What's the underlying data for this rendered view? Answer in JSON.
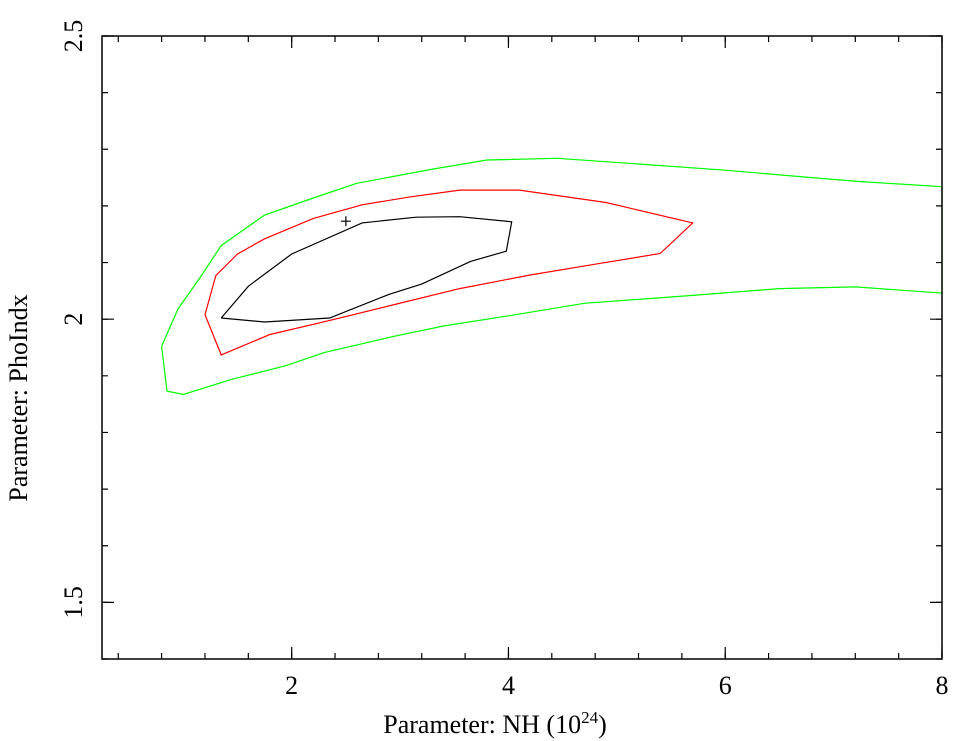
{
  "chart_data": {
    "type": "line",
    "title": "",
    "xlabel": "Parameter: NH (10",
    "xlabel_sup": "24",
    "xlabel_suffix": ")",
    "ylabel": "Parameter: PhoIndx",
    "xlim": [
      0.25,
      8.0
    ],
    "ylim": [
      1.4,
      2.5
    ],
    "x_ticks": [
      2,
      4,
      6,
      8
    ],
    "x_tick_labels": [
      "2",
      "4",
      "6",
      "8"
    ],
    "y_ticks": [
      1.5,
      2,
      2.5
    ],
    "y_tick_labels": [
      "1.5",
      "2",
      "2.5"
    ],
    "x_minor_step": 0.4,
    "y_minor_step": 0.1,
    "grid": false,
    "best_fit": {
      "x": 2.5,
      "y": 2.173
    },
    "series": [
      {
        "color": "#000000",
        "points": [
          [
            1.35,
            2.002
          ],
          [
            1.6,
            2.058
          ],
          [
            2.0,
            2.115
          ],
          [
            2.65,
            2.17
          ],
          [
            3.15,
            2.18
          ],
          [
            3.55,
            2.181
          ],
          [
            4.03,
            2.172
          ],
          [
            3.98,
            2.12
          ],
          [
            3.65,
            2.102
          ],
          [
            3.2,
            2.062
          ],
          [
            2.9,
            2.044
          ],
          [
            2.35,
            2.002
          ],
          [
            1.75,
            1.995
          ],
          [
            1.35,
            2.002
          ]
        ]
      },
      {
        "color": "#ff0000",
        "points": [
          [
            1.3,
            2.077
          ],
          [
            1.5,
            2.115
          ],
          [
            1.75,
            2.142
          ],
          [
            2.2,
            2.178
          ],
          [
            2.65,
            2.202
          ],
          [
            3.1,
            2.216
          ],
          [
            3.55,
            2.228
          ],
          [
            4.1,
            2.228
          ],
          [
            4.9,
            2.206
          ],
          [
            5.7,
            2.17
          ],
          [
            5.4,
            2.116
          ],
          [
            4.8,
            2.097
          ],
          [
            4.2,
            2.078
          ],
          [
            3.55,
            2.054
          ],
          [
            2.95,
            2.026
          ],
          [
            2.4,
            2.0
          ],
          [
            1.8,
            1.973
          ],
          [
            1.35,
            1.937
          ],
          [
            1.2,
            2.008
          ],
          [
            1.3,
            2.077
          ]
        ]
      },
      {
        "color": "#00ff00",
        "points": [
          [
            0.8,
            1.952
          ],
          [
            0.95,
            2.018
          ],
          [
            1.15,
            2.072
          ],
          [
            1.35,
            2.13
          ],
          [
            1.75,
            2.184
          ],
          [
            2.2,
            2.214
          ],
          [
            2.6,
            2.24
          ],
          [
            3.3,
            2.265
          ],
          [
            3.8,
            2.281
          ],
          [
            4.45,
            2.284
          ],
          [
            5.2,
            2.274
          ],
          [
            6.0,
            2.263
          ],
          [
            6.8,
            2.25
          ],
          [
            7.25,
            2.243
          ],
          [
            8.0,
            2.234
          ],
          [
            8.0,
            2.046
          ],
          [
            7.2,
            2.057
          ],
          [
            6.5,
            2.054
          ],
          [
            5.7,
            2.042
          ],
          [
            4.7,
            2.028
          ],
          [
            4.0,
            2.006
          ],
          [
            3.4,
            1.988
          ],
          [
            2.95,
            1.97
          ],
          [
            2.3,
            1.941
          ],
          [
            1.95,
            1.918
          ],
          [
            1.45,
            1.894
          ],
          [
            1.0,
            1.867
          ],
          [
            0.85,
            1.873
          ],
          [
            0.8,
            1.952
          ]
        ]
      }
    ]
  }
}
